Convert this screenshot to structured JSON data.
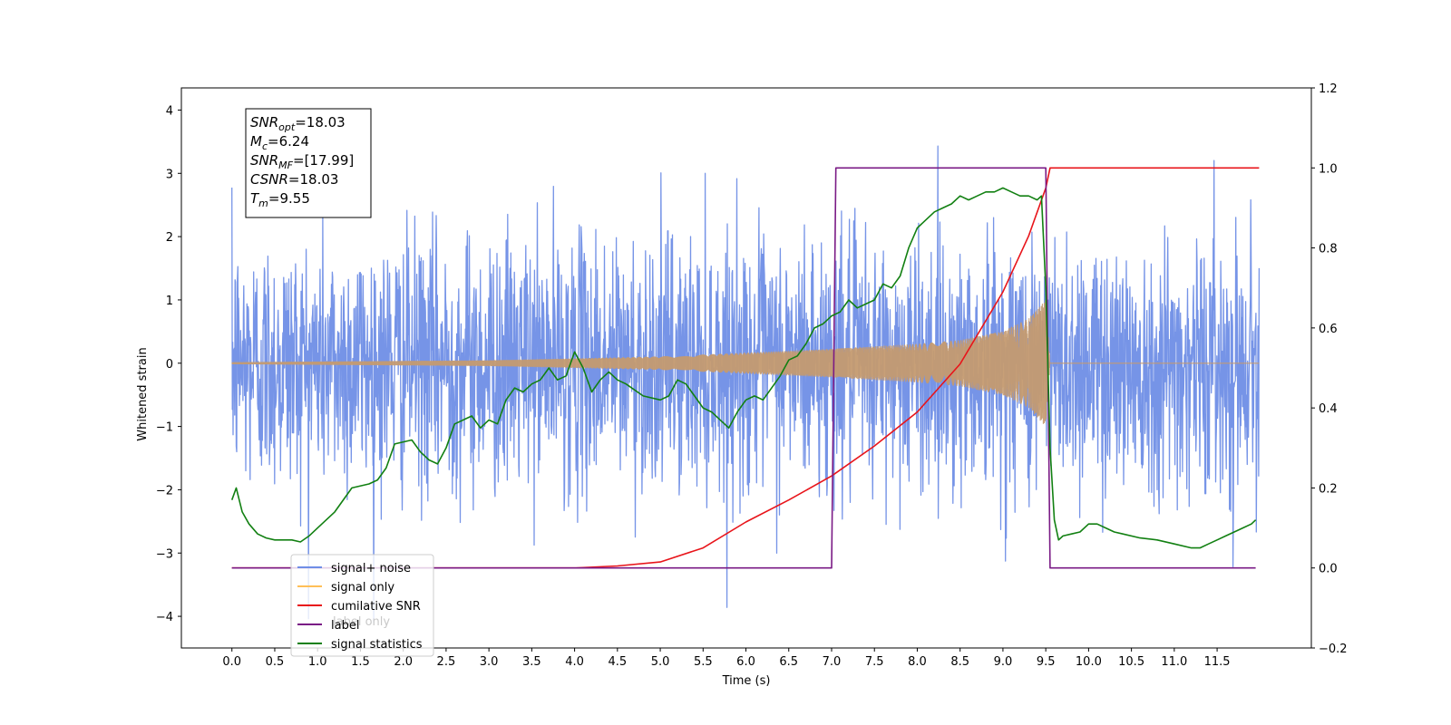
{
  "chart_data": {
    "type": "line",
    "xlabel": "Time (s)",
    "ylabel": "Whitened strain",
    "ylabel_right": "",
    "xlim": [
      -0.59,
      12.6
    ],
    "ylim_left": [
      -4.5,
      4.35
    ],
    "ylim_right": [
      -0.2,
      1.2
    ],
    "x_ticks": [
      0.0,
      0.5,
      1.0,
      1.5,
      2.0,
      2.5,
      3.0,
      3.5,
      4.0,
      4.5,
      5.0,
      5.5,
      6.0,
      6.5,
      7.0,
      7.5,
      8.0,
      8.5,
      9.0,
      9.5,
      10.0,
      10.5,
      11.0,
      11.5
    ],
    "x_tick_labels": [
      "0.0",
      "0.5",
      "1.0",
      "1.5",
      "2.0",
      "2.5",
      "3.0",
      "3.5",
      "4.0",
      "4.5",
      "5.0",
      "5.5",
      "6.0",
      "6.5",
      "7.0",
      "7.5",
      "8.0",
      "8.5",
      "9.0",
      "9.5",
      "10.0",
      "10.5",
      "11.0",
      "11.5"
    ],
    "y_ticks_left": [
      -4,
      -3,
      -2,
      -1,
      0,
      1,
      2,
      3,
      4
    ],
    "y_tick_labels_left": [
      "−4",
      "−3",
      "−2",
      "−1",
      "0",
      "1",
      "2",
      "3",
      "4"
    ],
    "y_ticks_right": [
      -0.2,
      0.0,
      0.2,
      0.4,
      0.6,
      0.8,
      1.0,
      1.2
    ],
    "y_tick_labels_right": [
      "−0.2",
      "0.0",
      "0.2",
      "0.4",
      "0.6",
      "0.8",
      "1.0",
      "1.2"
    ],
    "grid": false,
    "legend_position": "lower-left",
    "info_box": {
      "lines": [
        {
          "main": "SNR",
          "sub": "opt",
          "rest": "=18.03"
        },
        {
          "main": "M",
          "sub": "c",
          "rest": "=6.24"
        },
        {
          "main": "SNR",
          "sub": "MF",
          "rest": "=[17.99]"
        },
        {
          "main": "CSNR",
          "sub": "",
          "rest": "=18.03"
        },
        {
          "main": "T",
          "sub": "m",
          "rest": "=9.55"
        }
      ]
    },
    "legend": [
      {
        "label": "signal+ noise",
        "color": "#6f8ee6"
      },
      {
        "label": "signal only",
        "color": "#ffbf57"
      },
      {
        "label": "cumilative SNR",
        "color": "#e8141a"
      },
      {
        "label": "label",
        "color": "#7a1a85"
      },
      {
        "label": "signal statistics",
        "color": "#128012"
      }
    ],
    "legend_overlap_text": "label only",
    "series": [
      {
        "name": "signal+ noise",
        "axis": "left",
        "color": "#6f8ee6",
        "style": "noise",
        "x_range": [
          0.0,
          11.99
        ],
        "noise_envelope": {
          "typical_peak": 2.6,
          "max_peak": 3.95,
          "min_trough": -4.1
        }
      },
      {
        "name": "signal only",
        "axis": "left",
        "color": "#c49a70",
        "style": "chirp",
        "x_range": [
          0.0,
          9.55
        ],
        "amplitude": {
          "t": [
            0.0,
            3.0,
            5.0,
            6.0,
            7.0,
            8.0,
            8.5,
            9.0,
            9.3,
            9.5,
            9.55
          ],
          "a": [
            0.01,
            0.04,
            0.1,
            0.16,
            0.22,
            0.3,
            0.36,
            0.5,
            0.7,
            1.0,
            0.0
          ]
        }
      },
      {
        "name": "cumilative SNR",
        "axis": "right",
        "color": "#e8141a",
        "x": [
          0.0,
          4.0,
          4.5,
          5.0,
          5.5,
          6.0,
          6.5,
          7.0,
          7.5,
          8.0,
          8.5,
          9.0,
          9.3,
          9.5,
          9.55,
          11.99
        ],
        "y": [
          0.0,
          0.0,
          0.005,
          0.015,
          0.05,
          0.115,
          0.17,
          0.23,
          0.305,
          0.39,
          0.51,
          0.69,
          0.83,
          0.95,
          1.0,
          1.0
        ]
      },
      {
        "name": "label",
        "axis": "right",
        "color": "#7a1a85",
        "x": [
          0.0,
          7.0,
          7.05,
          9.5,
          9.55,
          11.95
        ],
        "y": [
          0.0,
          0.0,
          1.0,
          1.0,
          0.0,
          0.0
        ]
      },
      {
        "name": "signal statistics",
        "axis": "right",
        "color": "#128012",
        "x": [
          0.0,
          0.05,
          0.12,
          0.2,
          0.3,
          0.4,
          0.5,
          0.7,
          0.8,
          0.9,
          1.0,
          1.2,
          1.4,
          1.6,
          1.7,
          1.8,
          1.9,
          2.1,
          2.2,
          2.3,
          2.4,
          2.5,
          2.6,
          2.7,
          2.8,
          2.9,
          3.0,
          3.1,
          3.2,
          3.3,
          3.4,
          3.5,
          3.6,
          3.7,
          3.8,
          3.9,
          4.0,
          4.1,
          4.2,
          4.3,
          4.4,
          4.5,
          4.6,
          4.8,
          5.0,
          5.1,
          5.2,
          5.3,
          5.4,
          5.5,
          5.6,
          5.7,
          5.8,
          5.9,
          6.0,
          6.1,
          6.2,
          6.4,
          6.5,
          6.6,
          6.7,
          6.8,
          6.9,
          7.0,
          7.1,
          7.2,
          7.3,
          7.4,
          7.5,
          7.6,
          7.7,
          7.8,
          7.9,
          8.0,
          8.1,
          8.2,
          8.3,
          8.4,
          8.5,
          8.6,
          8.7,
          8.8,
          8.9,
          9.0,
          9.1,
          9.2,
          9.3,
          9.4,
          9.45,
          9.5,
          9.55,
          9.6,
          9.65,
          9.7,
          9.8,
          9.9,
          10.0,
          10.1,
          10.2,
          10.3,
          10.4,
          10.6,
          10.8,
          11.0,
          11.2,
          11.3,
          11.4,
          11.5,
          11.6,
          11.7,
          11.8,
          11.9,
          11.95
        ],
        "y": [
          0.17,
          0.2,
          0.14,
          0.11,
          0.085,
          0.075,
          0.07,
          0.07,
          0.065,
          0.08,
          0.1,
          0.14,
          0.2,
          0.21,
          0.22,
          0.25,
          0.31,
          0.32,
          0.29,
          0.27,
          0.26,
          0.3,
          0.36,
          0.37,
          0.38,
          0.35,
          0.37,
          0.36,
          0.42,
          0.45,
          0.44,
          0.46,
          0.47,
          0.5,
          0.47,
          0.48,
          0.54,
          0.5,
          0.44,
          0.47,
          0.49,
          0.47,
          0.46,
          0.43,
          0.42,
          0.43,
          0.47,
          0.46,
          0.43,
          0.4,
          0.39,
          0.37,
          0.35,
          0.39,
          0.42,
          0.43,
          0.42,
          0.48,
          0.52,
          0.53,
          0.56,
          0.6,
          0.61,
          0.63,
          0.64,
          0.67,
          0.65,
          0.66,
          0.67,
          0.71,
          0.7,
          0.73,
          0.8,
          0.85,
          0.87,
          0.89,
          0.9,
          0.91,
          0.93,
          0.92,
          0.93,
          0.94,
          0.94,
          0.95,
          0.94,
          0.93,
          0.93,
          0.92,
          0.93,
          0.7,
          0.3,
          0.12,
          0.07,
          0.08,
          0.085,
          0.09,
          0.11,
          0.11,
          0.1,
          0.09,
          0.085,
          0.075,
          0.07,
          0.06,
          0.05,
          0.05,
          0.06,
          0.07,
          0.08,
          0.09,
          0.1,
          0.11,
          0.12
        ]
      }
    ]
  }
}
